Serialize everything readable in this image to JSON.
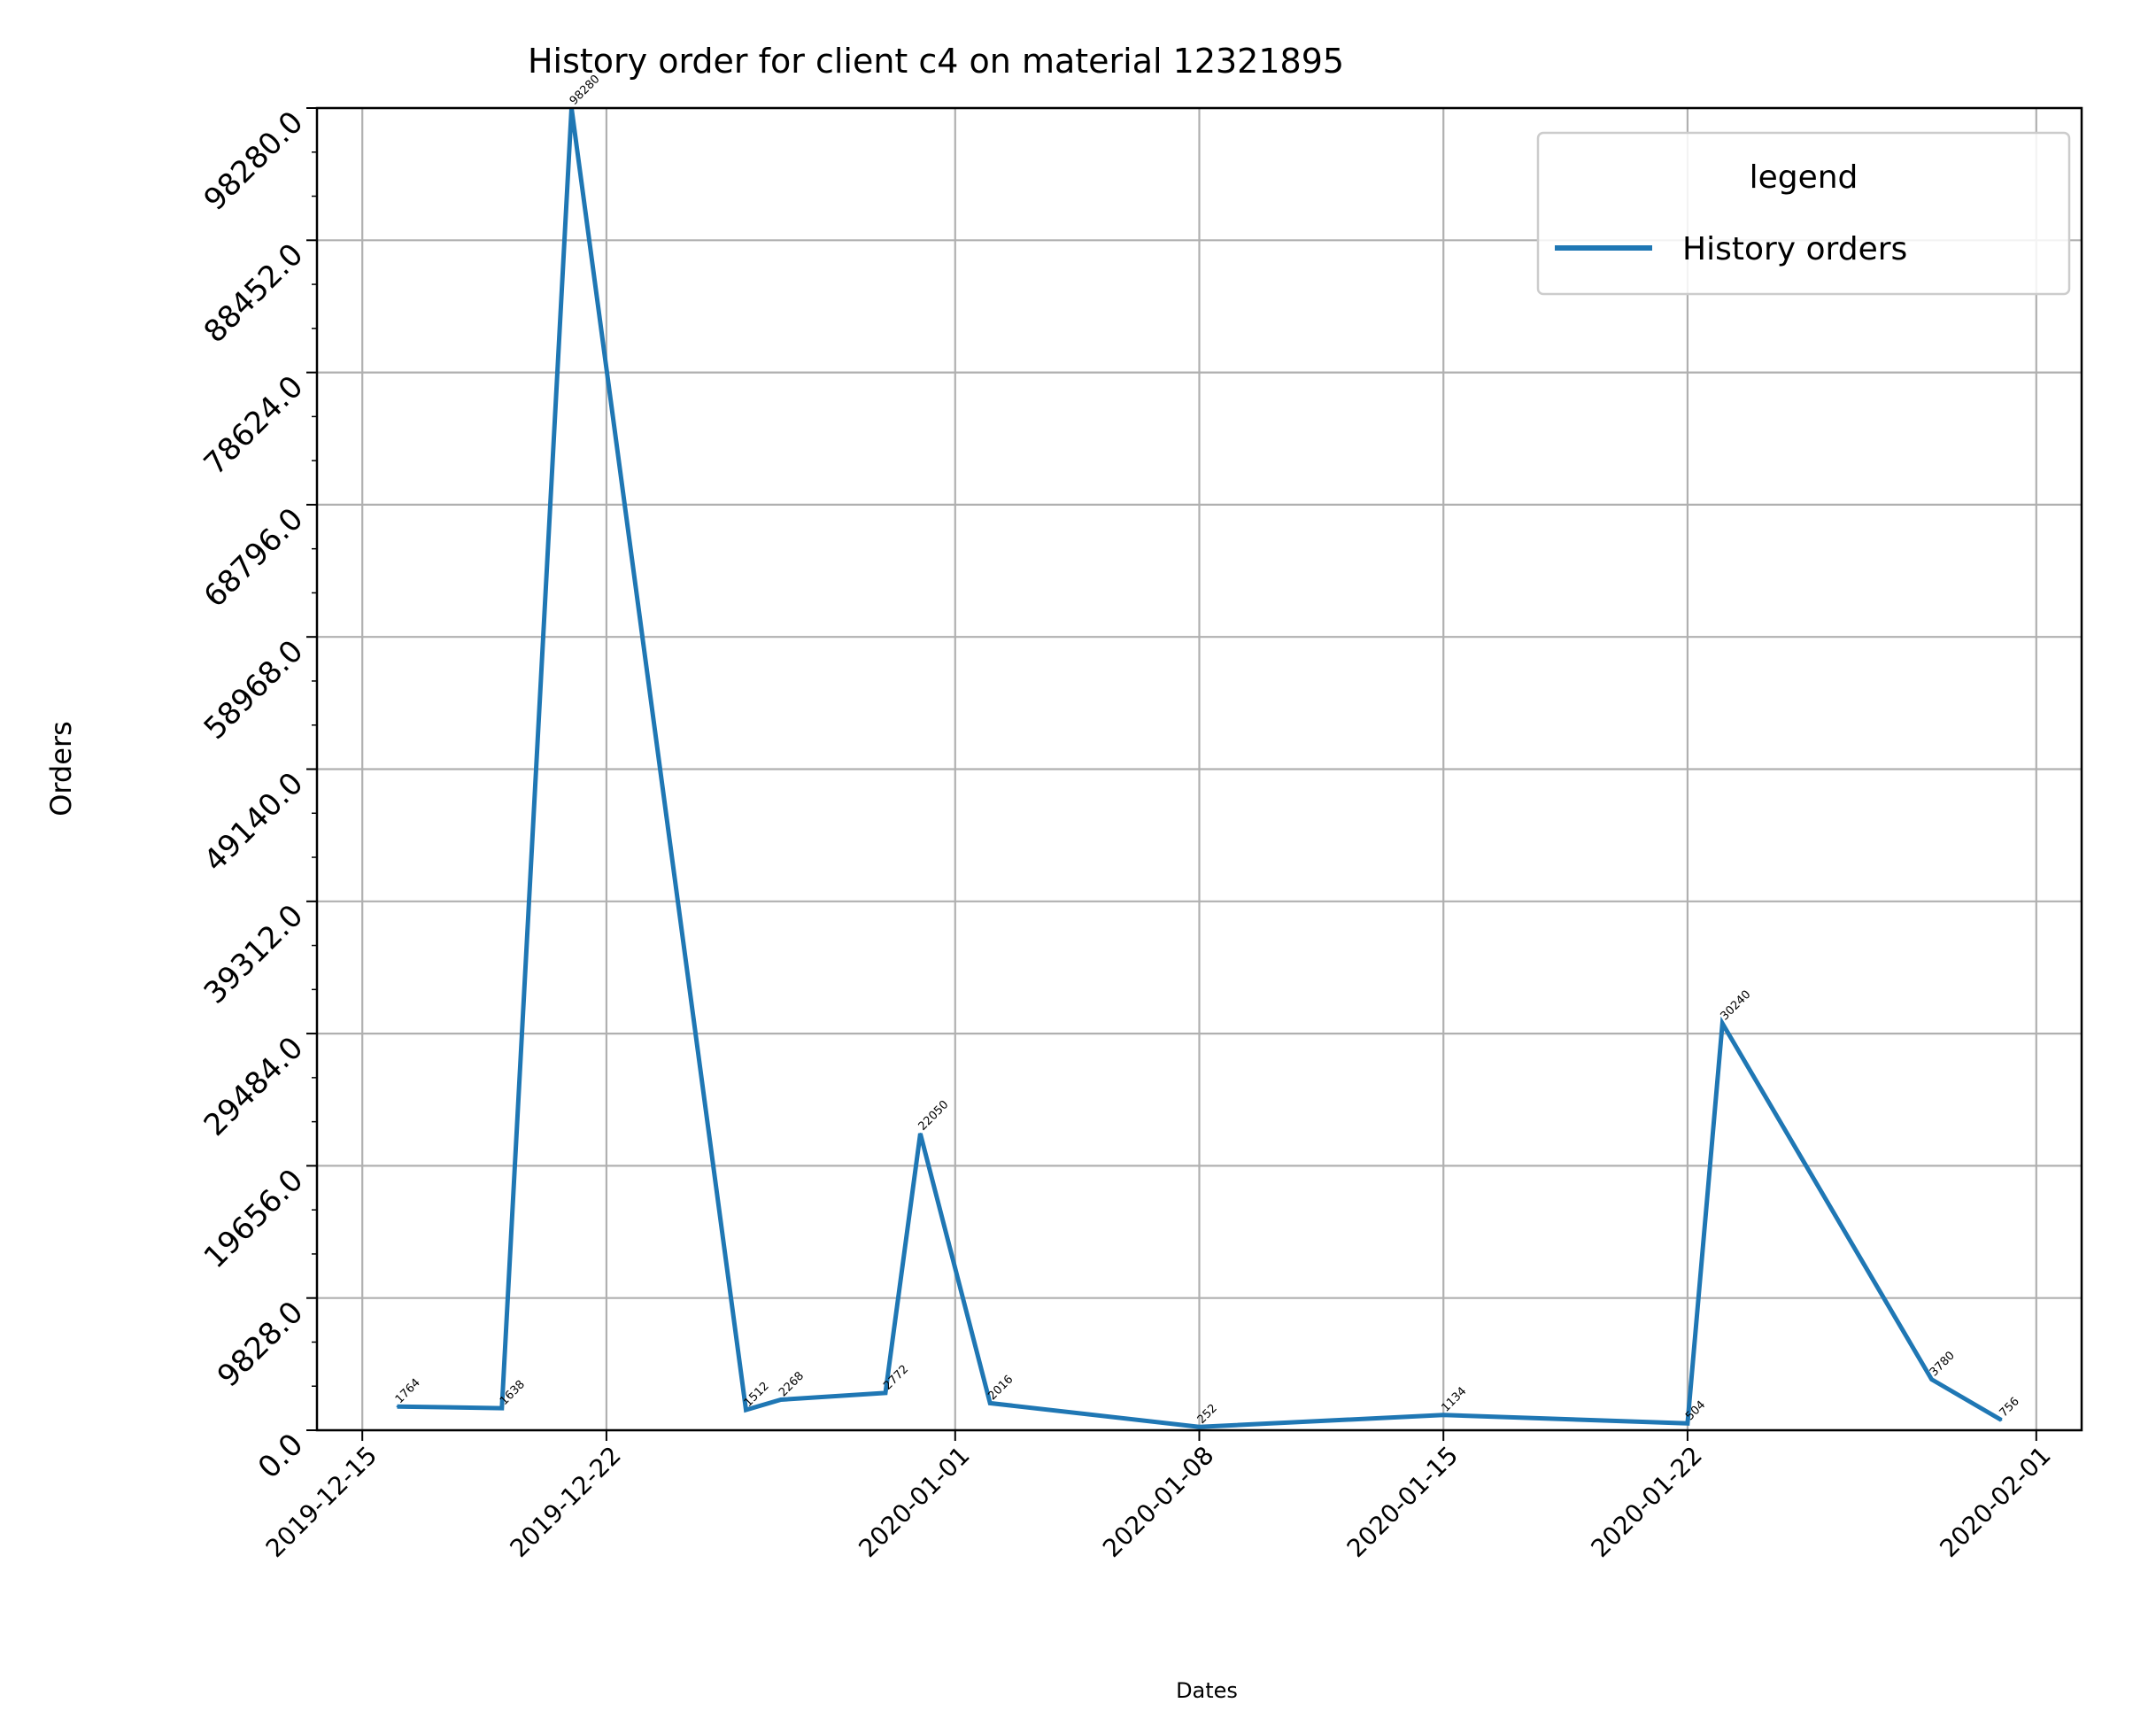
{
  "chart_data": {
    "type": "line",
    "title": "History order for client c4 on material 12321895",
    "xlabel": "Dates",
    "ylabel": "Orders",
    "x_ticks": [
      "2019-12-15",
      "2019-12-22",
      "2020-01-01",
      "2020-01-08",
      "2020-01-15",
      "2020-01-22",
      "2020-02-01"
    ],
    "y_ticks": [
      "0.0",
      "9828.0",
      "19656.0",
      "29484.0",
      "39312.0",
      "49140.0",
      "58968.0",
      "68796.0",
      "78624.0",
      "88452.0",
      "98280.0"
    ],
    "xlim": [
      "2019-12-13.7",
      "2020-02-02.3"
    ],
    "ylim": [
      0,
      98280
    ],
    "grid": true,
    "legend": {
      "title": "legend",
      "placement": "top-right"
    },
    "series": [
      {
        "name": "History orders",
        "color": "#1f77b4",
        "x": [
          "2019-12-16",
          "2019-12-19",
          "2019-12-21",
          "2019-12-26",
          "2019-12-27",
          "2019-12-30",
          "2019-12-31",
          "2020-01-02",
          "2020-01-08",
          "2020-01-15",
          "2020-01-22",
          "2020-01-23",
          "2020-01-29",
          "2020-01-31"
        ],
        "y": [
          1764,
          1638,
          98280,
          1512,
          2268,
          2772,
          22050,
          2016,
          252,
          1134,
          504,
          30240,
          3780,
          756
        ],
        "labels": [
          "1764",
          "1638",
          "98280",
          "1512",
          "2268",
          "2772",
          "22050",
          "2016",
          "252",
          "1134",
          "504",
          "30240",
          "3780",
          "756"
        ]
      }
    ]
  }
}
